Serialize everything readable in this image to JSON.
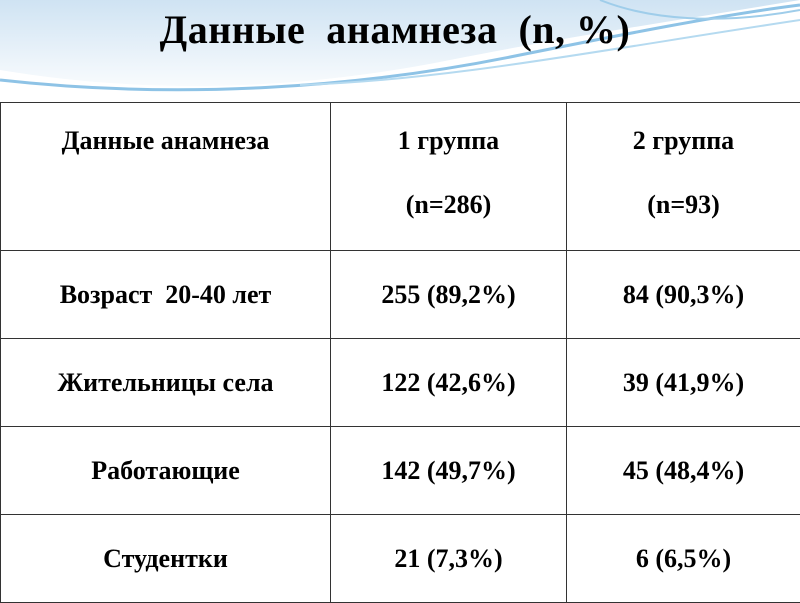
{
  "header": {
    "title": "Данные  анамнеза  (n, %)"
  },
  "table": {
    "header": [
      [
        "Данные анамнеза"
      ],
      [
        "1 группа",
        "(n=286)"
      ],
      [
        "2 группа",
        "(n=93)"
      ]
    ],
    "rows": [
      [
        "Возраст  20-40 лет",
        "255 (89,2%)",
        "84 (90,3%)"
      ],
      [
        "Жительницы села",
        "122 (42,6%)",
        "39 (41,9%)"
      ],
      [
        "Работающие",
        "142 (49,7%)",
        "45 (48,4%)"
      ],
      [
        "Студентки",
        "21 (7,3%)",
        "6 (6,5%)"
      ]
    ]
  }
}
